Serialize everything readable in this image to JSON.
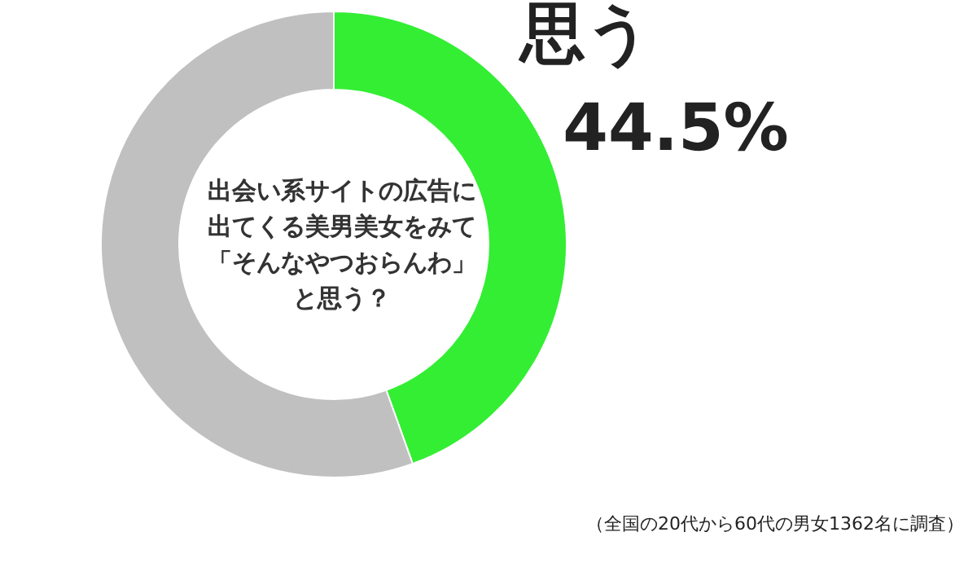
{
  "chart_data": {
    "type": "donut",
    "title": "出会い系サイトの広告に出てくる美男美女をみて「そんなやつおらんわ」と思う？",
    "categories": [
      "思う",
      null
    ],
    "values": [
      44.5,
      55.5
    ],
    "colors": [
      "#33ee33",
      "#c0c0c0"
    ],
    "value_labels": [
      "44.5%",
      null
    ],
    "annotations": [
      "（全国の20代から60代の男女1362名に調査）"
    ]
  }
}
